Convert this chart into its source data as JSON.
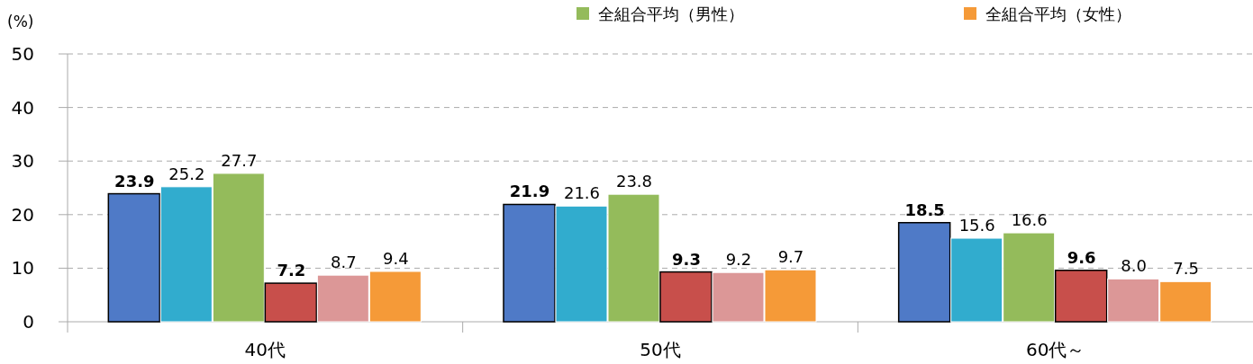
{
  "chart_data": {
    "type": "bar",
    "ylabel": "(%)",
    "categories": [
      "40代",
      "50代",
      "60代～"
    ],
    "series": [
      {
        "color": "#4f7ac7",
        "values": [
          23.9,
          21.9,
          18.5
        ],
        "value_labels": [
          "23.9",
          "21.9",
          "18.5"
        ]
      },
      {
        "color": "#31acce",
        "values": [
          25.2,
          21.6,
          15.6
        ],
        "value_labels": [
          "25.2",
          "21.6",
          "15.6"
        ]
      },
      {
        "name": "全組合平均（男性）",
        "color": "#94bb5b",
        "values": [
          27.7,
          23.8,
          16.6
        ],
        "value_labels": [
          "27.7",
          "23.8",
          "16.6"
        ]
      },
      {
        "color": "#c84f4b",
        "values": [
          7.2,
          9.3,
          9.6
        ],
        "value_labels": [
          "7.2",
          "9.3",
          "9.6"
        ]
      },
      {
        "color": "#dc9797",
        "values": [
          8.7,
          9.2,
          8.0
        ],
        "value_labels": [
          "8.7",
          "9.2",
          "8.0"
        ]
      },
      {
        "name": "全組合平均（女性）",
        "color": "#f59a38",
        "values": [
          9.4,
          9.7,
          7.5
        ],
        "value_labels": [
          "9.4",
          "9.7",
          "7.5"
        ]
      }
    ],
    "ylim": [
      0,
      50
    ],
    "yticks": [
      0,
      10,
      20,
      30,
      40,
      50
    ],
    "grid": "y",
    "legend": "top"
  }
}
